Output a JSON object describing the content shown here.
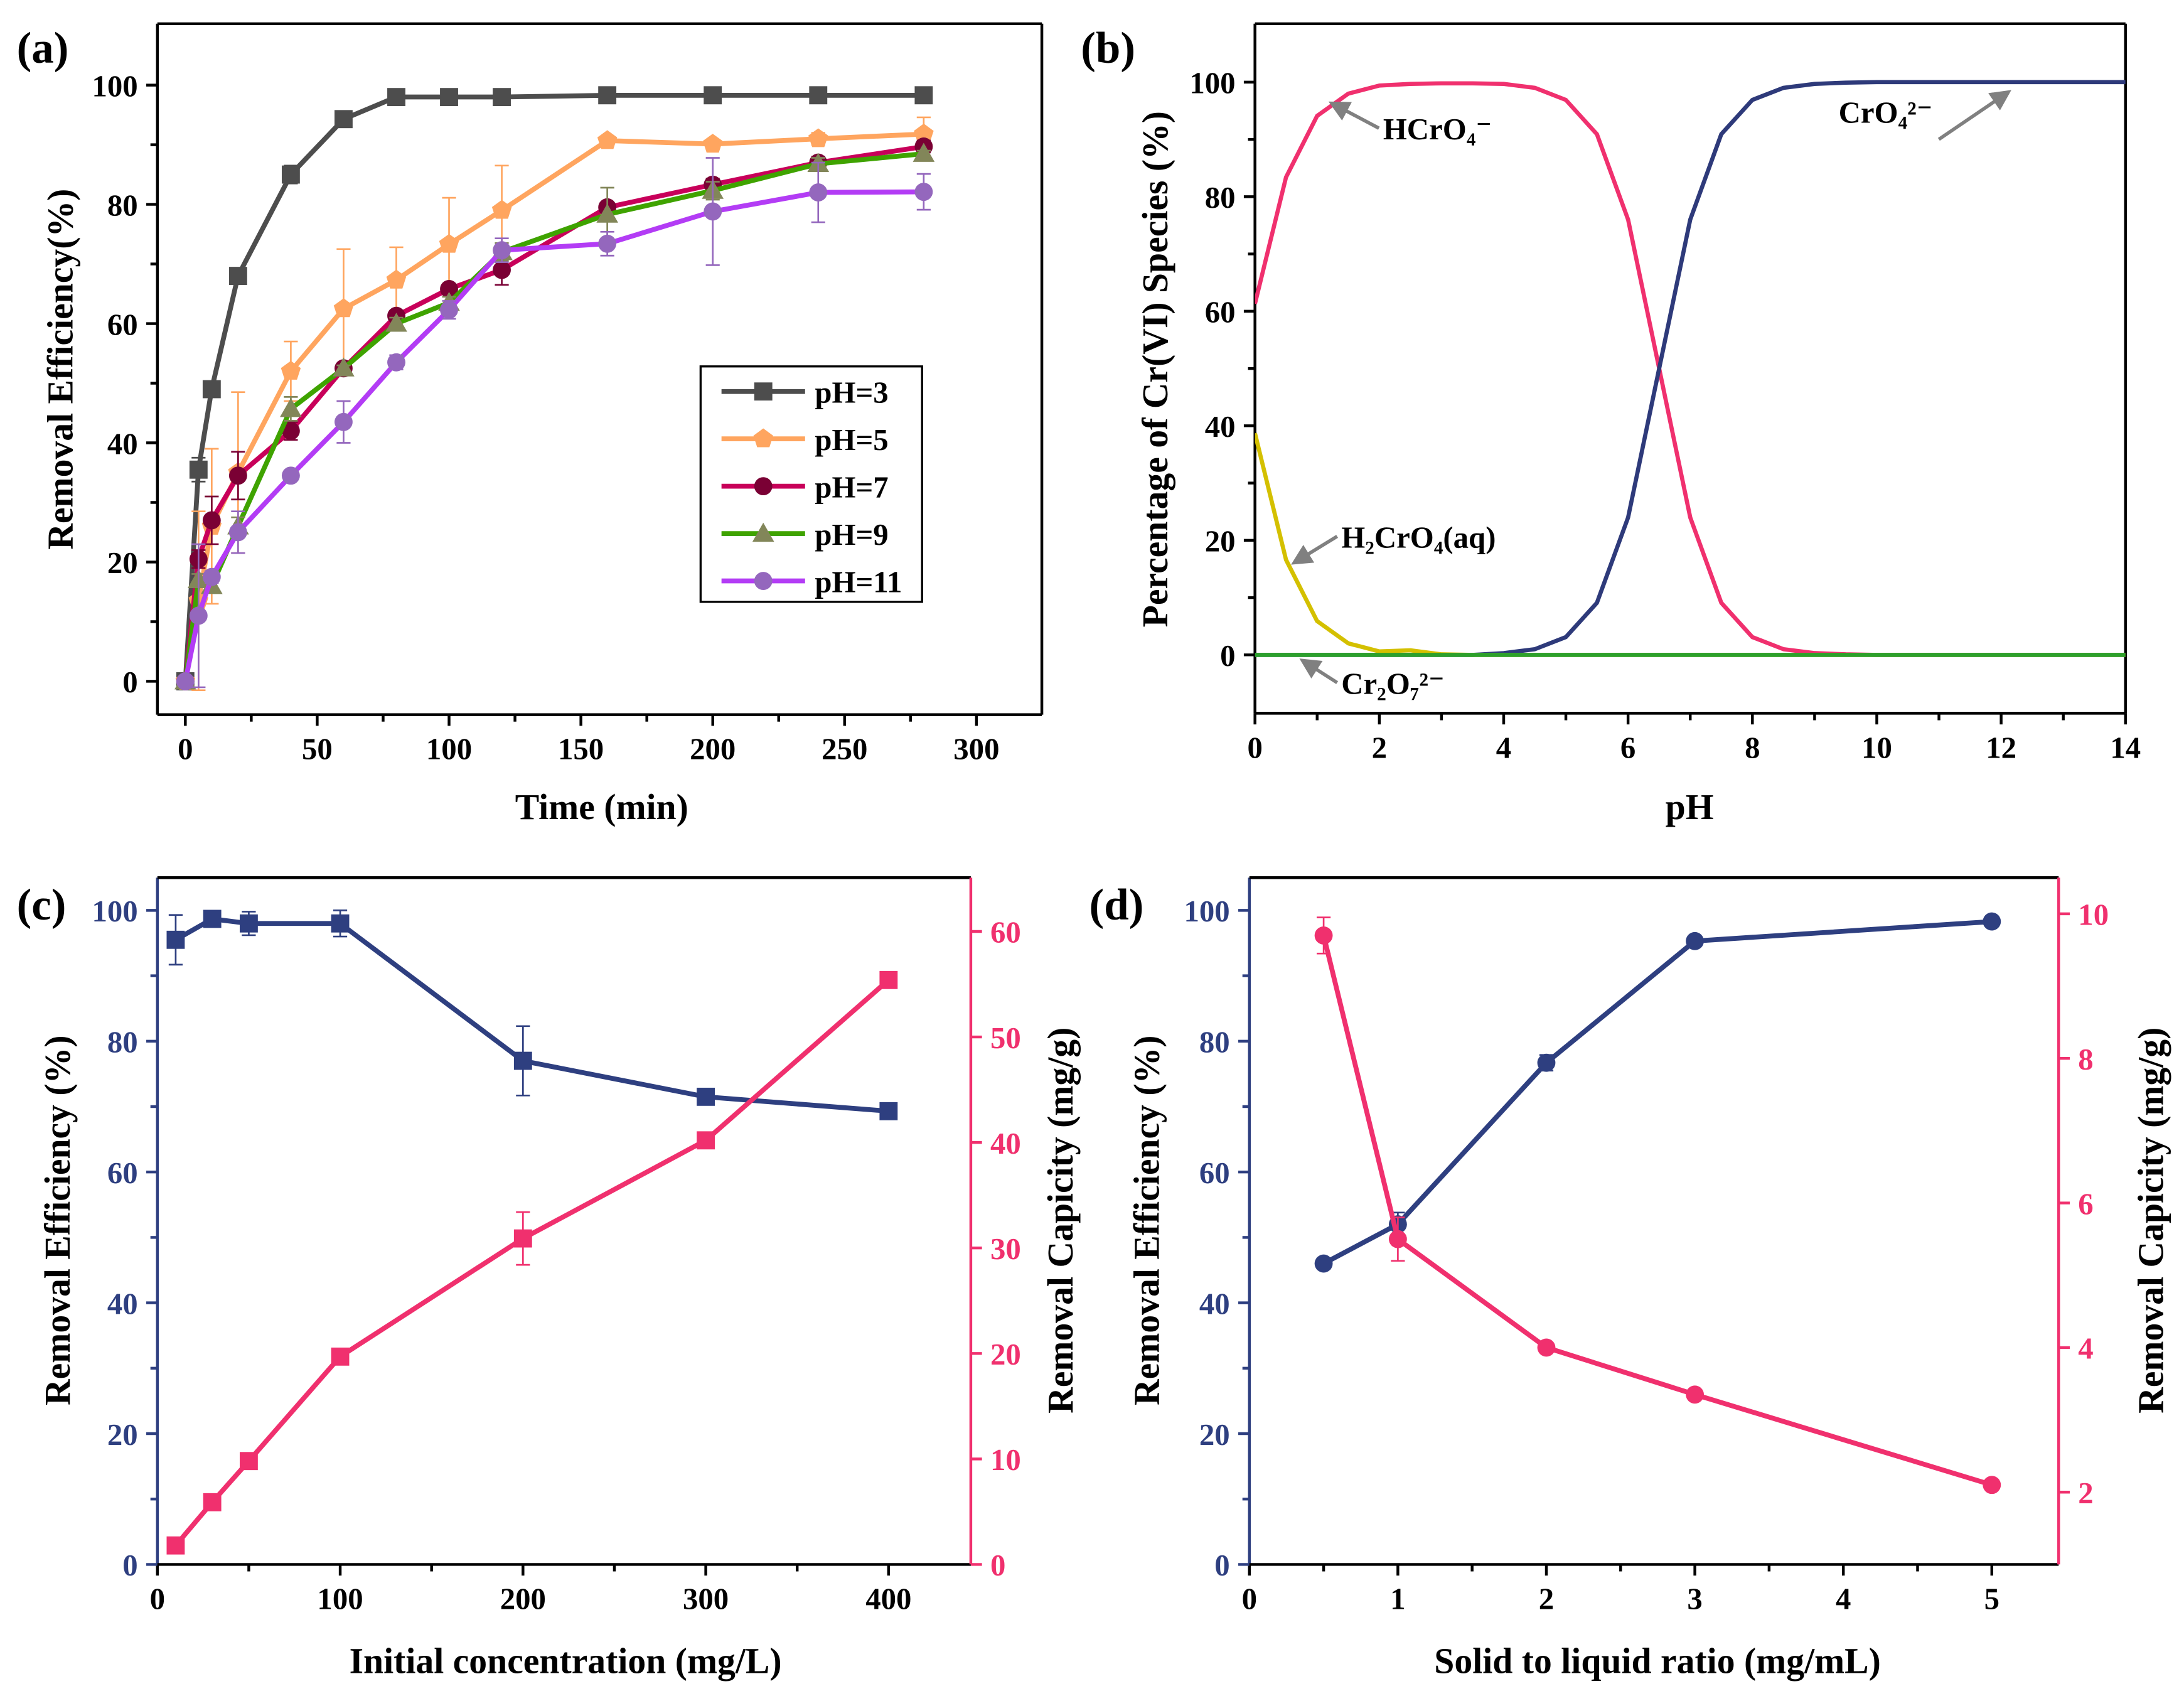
{
  "panels": [
    "(a)",
    "(b)",
    "(c)",
    "(d)"
  ],
  "chart_data": [
    {
      "type": "line",
      "title": "(a)",
      "xlabel": "Time (min)",
      "ylabel": "Removal  Efficiency(%)",
      "xlim": [
        -10.6,
        324.8
      ],
      "ylim": [
        -5.6,
        110.3
      ],
      "xticks": [
        0,
        50,
        100,
        150,
        200,
        250,
        300
      ],
      "yticks": [
        0,
        20,
        40,
        60,
        80,
        100
      ],
      "x": [
        0,
        5,
        10,
        20,
        40,
        60,
        80,
        100,
        120,
        160,
        200,
        240,
        280
      ],
      "legend_position": "center-right",
      "series": [
        {
          "name": "pH=3",
          "color": "#4d4d4d",
          "marker_color": "#4d4d4d",
          "marker": "square",
          "values": [
            0,
            35.5,
            49,
            68,
            85,
            94.3,
            98,
            98,
            98,
            98.3,
            98.3,
            98.3,
            98.3
          ],
          "errors": [
            0,
            2,
            0,
            0.5,
            1.5,
            0,
            0,
            0,
            0,
            0,
            0,
            0,
            0
          ]
        },
        {
          "name": "pH=5",
          "color": "#ffa55f",
          "marker_color": "#ffa55f",
          "marker": "pentagon",
          "values": [
            0,
            13.5,
            26,
            35,
            52,
            62.5,
            67.3,
            73.3,
            79,
            90.7,
            90.1,
            91,
            91.8
          ],
          "errors": [
            0,
            15,
            13,
            13.5,
            5,
            10,
            5.5,
            7.8,
            7.5,
            0.5,
            0.5,
            1,
            2.8
          ]
        },
        {
          "name": "pH=7",
          "color": "#c8005a",
          "marker_color": "#7a0034",
          "marker": "circle",
          "values": [
            0,
            20.5,
            27,
            34.5,
            42,
            52.5,
            61.3,
            65.8,
            69,
            79.5,
            83.3,
            87,
            89.7
          ],
          "errors": [
            0,
            1.5,
            4,
            4,
            1.5,
            0.5,
            0.5,
            0.5,
            2.5,
            0.5,
            1,
            1,
            1
          ]
        },
        {
          "name": "pH=9",
          "color": "#3fa300",
          "marker_color": "#828659",
          "marker": "triangle",
          "values": [
            0,
            17,
            16,
            26,
            45.7,
            52.5,
            60,
            63.5,
            72,
            78.3,
            82.3,
            86.8,
            88.5
          ],
          "errors": [
            0,
            1,
            1,
            1.5,
            2,
            0.5,
            1,
            1,
            1.5,
            4.5,
            1.5,
            1,
            0.5
          ]
        },
        {
          "name": "pH=11",
          "color": "#b33cf5",
          "marker_color": "#9467bd",
          "marker": "circle",
          "values": [
            0,
            11,
            17.5,
            25,
            34.5,
            43.5,
            53.5,
            62.3,
            72.3,
            73.4,
            78.8,
            82,
            82.1
          ],
          "errors": [
            0,
            12,
            1,
            3.5,
            0.7,
            3.5,
            1.2,
            1.5,
            2,
            2,
            9,
            5,
            3
          ]
        }
      ]
    },
    {
      "type": "line",
      "title": "(b)",
      "xlabel": "pH",
      "ylabel": "Percentage of Cr(VI) Species (%)",
      "xlim": [
        0,
        14
      ],
      "ylim": [
        -10.2,
        110.2
      ],
      "xticks": [
        0,
        2,
        4,
        6,
        8,
        10,
        12,
        14
      ],
      "yticks": [
        0,
        20,
        40,
        60,
        80,
        100
      ],
      "x": [
        0,
        0.5,
        1,
        1.5,
        2,
        2.5,
        3,
        3.5,
        4,
        4.5,
        5,
        5.5,
        6,
        6.5,
        7,
        7.5,
        8,
        8.5,
        9,
        9.5,
        10,
        11,
        12,
        13,
        14
      ],
      "series": [
        {
          "name": "HCrO₄⁻",
          "color": "#f0306e",
          "values": [
            61.3,
            83.4,
            94.1,
            98.0,
            99.4,
            99.7,
            99.8,
            99.8,
            99.7,
            99.0,
            96.9,
            90.9,
            76.0,
            50.0,
            24.0,
            9.1,
            3.1,
            1.0,
            0.3,
            0.1,
            0,
            0,
            0,
            0,
            0
          ]
        },
        {
          "name": "CrO₄²⁻",
          "color": "#2e3a7a",
          "values": [
            0,
            0,
            0,
            0,
            0,
            0,
            0,
            0,
            0.3,
            1.0,
            3.1,
            9.1,
            24.0,
            50.0,
            76.0,
            90.9,
            96.9,
            99.0,
            99.7,
            99.9,
            100,
            100,
            100,
            100,
            100
          ]
        },
        {
          "name": "H₂CrO₄(aq)",
          "color": "#d4c000",
          "values": [
            38.7,
            16.6,
            5.9,
            2.0,
            0.6,
            0.8,
            0.1,
            0,
            0,
            0,
            0,
            0,
            0,
            0,
            0,
            0,
            0,
            0,
            0,
            0,
            0,
            0,
            0,
            0,
            0
          ]
        },
        {
          "name": "Cr₂O₇²⁻",
          "color": "#2ca02c",
          "values": [
            0,
            0,
            0,
            0,
            0,
            0,
            0,
            0,
            0,
            0,
            0,
            0,
            0,
            0,
            0,
            0,
            0,
            0,
            0,
            0,
            0,
            0,
            0,
            0,
            0
          ]
        }
      ],
      "annotations": [
        "HCrO₄⁻",
        "CrO₄²⁻",
        "H₂CrO₄(aq)",
        "Cr₂O₇²⁻"
      ]
    },
    {
      "type": "line",
      "title": "(c)",
      "xlabel": "Initial concentration (mg/L)",
      "ylabel": "Removal Efficiency (%)",
      "y2label": "Removal Capicity (mg/g)",
      "xlim": [
        0,
        445
      ],
      "ylim": [
        0,
        105
      ],
      "y2lim": [
        0,
        65.1
      ],
      "xticks": [
        0,
        100,
        200,
        300,
        400
      ],
      "yticks": [
        0,
        20,
        40,
        60,
        80,
        100
      ],
      "y2ticks": [
        0,
        10,
        20,
        30,
        40,
        50,
        60
      ],
      "x": [
        10,
        30,
        50,
        100,
        200,
        300,
        400
      ],
      "left_color": "#2e3f80",
      "right_color": "#f0306e",
      "series": [
        {
          "name": "Removal Efficiency",
          "axis": "left",
          "color": "#2e3f80",
          "marker_color": "#2e3f80",
          "marker": "square",
          "values": [
            95.5,
            98.7,
            98,
            98,
            77,
            71.5,
            69.3
          ],
          "errors": [
            3.8,
            0.5,
            1.8,
            2,
            5.3,
            0.8,
            0.5
          ]
        },
        {
          "name": "Removal Capicity",
          "axis": "right",
          "color": "#f0306e",
          "marker_color": "#f0306e",
          "marker": "square",
          "values": [
            1.8,
            5.9,
            9.8,
            19.7,
            30.9,
            40.2,
            55.4
          ],
          "errors": [
            0,
            0.4,
            0.3,
            0.3,
            2.5,
            0.4,
            0.5
          ]
        }
      ]
    },
    {
      "type": "line",
      "title": "(d)",
      "xlabel": "Solid to liquid ratio (mg/mL)",
      "ylabel": "Removal  Efficiency (%)",
      "y2label": "Removal  Capicity (mg/g)",
      "xlim": [
        0,
        5.45
      ],
      "ylim": [
        0,
        105
      ],
      "y2lim": [
        1,
        10.5
      ],
      "xticks": [
        0,
        1,
        2,
        3,
        4,
        5
      ],
      "yticks": [
        0,
        20,
        40,
        60,
        80,
        100
      ],
      "y2ticks": [
        2,
        4,
        6,
        8,
        10
      ],
      "x": [
        0.5,
        1,
        2,
        3,
        5
      ],
      "left_color": "#2e3f80",
      "right_color": "#f0306e",
      "series": [
        {
          "name": "Removal Efficiency",
          "axis": "left",
          "color": "#2e3f80",
          "marker_color": "#2e3f80",
          "marker": "circle",
          "values": [
            46,
            52,
            76.7,
            95.3,
            98.3
          ],
          "errors": [
            0.8,
            1.8,
            1.2,
            0.5,
            0.5
          ]
        },
        {
          "name": "Removal Capicity",
          "axis": "right",
          "color": "#f0306e",
          "marker_color": "#f0306e",
          "marker": "circle",
          "values": [
            9.7,
            5.5,
            4.0,
            3.35,
            2.1
          ],
          "errors": [
            0.25,
            0.3,
            0.05,
            0.05,
            0.03
          ]
        }
      ]
    }
  ]
}
